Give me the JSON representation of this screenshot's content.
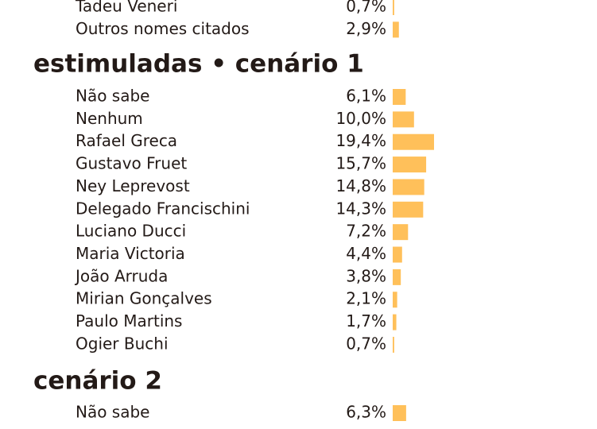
{
  "chart_data": [
    {
      "type": "bar",
      "color": "#ffc05a",
      "categories": [
        "Tadeu Veneri",
        "Outros nomes citados"
      ],
      "values": [
        0.7,
        2.9
      ],
      "value_labels": [
        "0,7%",
        "2,9%"
      ]
    },
    {
      "type": "bar",
      "title": "estimuladas • cenário 1",
      "color": "#ffc05a",
      "categories": [
        "Não sabe",
        "Nenhum",
        "Rafael Greca",
        "Gustavo Fruet",
        "Ney Leprevost",
        "Delegado Francischini",
        "Luciano Ducci",
        "Maria Victoria",
        "João Arruda",
        "Mirian Gonçalves",
        "Paulo Martins",
        "Ogier Buchi"
      ],
      "values": [
        6.1,
        10.0,
        19.4,
        15.7,
        14.8,
        14.3,
        7.2,
        4.4,
        3.8,
        2.1,
        1.7,
        0.7
      ],
      "value_labels": [
        "6,1%",
        "10,0%",
        "19,4%",
        "15,7%",
        "14,8%",
        "14,3%",
        "7,2%",
        "4,4%",
        "3,8%",
        "2,1%",
        "1,7%",
        "0,7%"
      ]
    },
    {
      "type": "bar",
      "title": "cenário 2",
      "color": "#ffc05a",
      "categories": [
        "Não sabe"
      ],
      "values": [
        6.3
      ],
      "value_labels": [
        "6,3%"
      ]
    }
  ]
}
